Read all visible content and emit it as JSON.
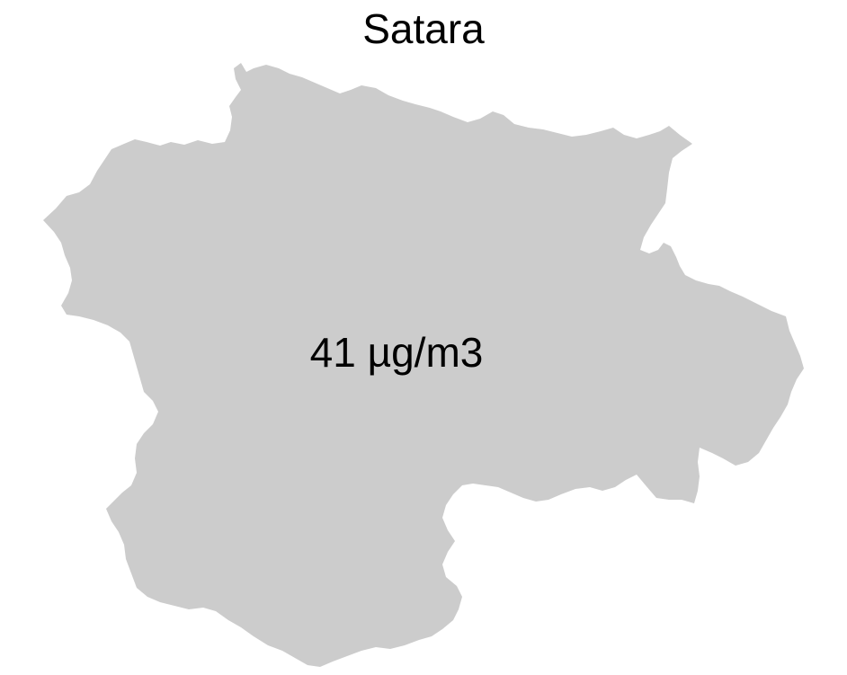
{
  "map": {
    "title": "Satara",
    "region_value_label": "41 µg/m3",
    "region_fill": "#cccccc",
    "background": "#ffffff"
  }
}
